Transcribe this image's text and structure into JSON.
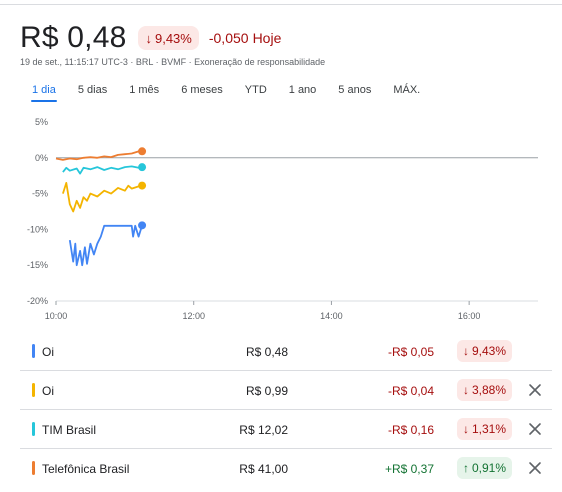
{
  "quote": {
    "price": "R$ 0,48",
    "pct": "9,43%",
    "pct_arrow": "↓",
    "change": "-0,050",
    "today": "Hoje",
    "meta": "19 de set., 11:15:17 UTC-3 · BRL · BVMF · Exoneração de responsabilidade"
  },
  "tabs": [
    "1 dia",
    "5 dias",
    "1 mês",
    "6 meses",
    "YTD",
    "1 ano",
    "5 anos",
    "MÁX."
  ],
  "active_tab": "1 dia",
  "chart_data": {
    "type": "line",
    "y_ticks": [
      "5%",
      "0%",
      "-5%",
      "-10%",
      "-15%",
      "-20%"
    ],
    "ylim": [
      -20,
      5
    ],
    "x_ticks": [
      "10:00",
      "12:00",
      "14:00",
      "16:00"
    ],
    "x_tick_hours": [
      10,
      12,
      14,
      16
    ],
    "xlim": [
      10,
      17
    ],
    "baseline": 0,
    "series": [
      {
        "color": "#ed7d31",
        "points": [
          [
            10.0,
            -0.1
          ],
          [
            10.1,
            -0.3
          ],
          [
            10.2,
            -0.1
          ],
          [
            10.3,
            -0.2
          ],
          [
            10.4,
            0.0
          ],
          [
            10.5,
            0.1
          ],
          [
            10.6,
            0.0
          ],
          [
            10.7,
            0.2
          ],
          [
            10.8,
            0.1
          ],
          [
            10.9,
            0.4
          ],
          [
            11.0,
            0.5
          ],
          [
            11.1,
            0.6
          ],
          [
            11.2,
            0.9
          ],
          [
            11.25,
            0.91
          ]
        ]
      },
      {
        "color": "#26c6da",
        "points": [
          [
            10.1,
            -2.0
          ],
          [
            10.15,
            -1.4
          ],
          [
            10.2,
            -1.8
          ],
          [
            10.3,
            -1.5
          ],
          [
            10.35,
            -2.2
          ],
          [
            10.4,
            -1.4
          ],
          [
            10.5,
            -1.6
          ],
          [
            10.6,
            -1.3
          ],
          [
            10.7,
            -1.7
          ],
          [
            10.8,
            -1.4
          ],
          [
            10.9,
            -1.6
          ],
          [
            11.0,
            -1.3
          ],
          [
            11.1,
            -1.2
          ],
          [
            11.2,
            -1.4
          ],
          [
            11.25,
            -1.31
          ]
        ]
      },
      {
        "color": "#f4b400",
        "points": [
          [
            10.1,
            -5.0
          ],
          [
            10.15,
            -3.5
          ],
          [
            10.2,
            -6.5
          ],
          [
            10.25,
            -7.5
          ],
          [
            10.3,
            -6.0
          ],
          [
            10.35,
            -7.0
          ],
          [
            10.4,
            -5.5
          ],
          [
            10.45,
            -6.0
          ],
          [
            10.5,
            -5.0
          ],
          [
            10.6,
            -5.4
          ],
          [
            10.7,
            -4.6
          ],
          [
            10.8,
            -5.0
          ],
          [
            10.9,
            -4.2
          ],
          [
            11.0,
            -4.6
          ],
          [
            11.05,
            -3.9
          ],
          [
            11.1,
            -4.3
          ],
          [
            11.2,
            -4.0
          ],
          [
            11.25,
            -3.88
          ]
        ]
      },
      {
        "color": "#4285f4",
        "points": [
          [
            10.2,
            -11.5
          ],
          [
            10.25,
            -14.5
          ],
          [
            10.28,
            -12.0
          ],
          [
            10.3,
            -15.0
          ],
          [
            10.35,
            -13.0
          ],
          [
            10.38,
            -15.0
          ],
          [
            10.42,
            -12.5
          ],
          [
            10.45,
            -14.8
          ],
          [
            10.5,
            -12.0
          ],
          [
            10.55,
            -13.5
          ],
          [
            10.6,
            -12.0
          ],
          [
            10.65,
            -11.0
          ],
          [
            10.7,
            -9.5
          ],
          [
            10.8,
            -9.5
          ],
          [
            11.0,
            -9.5
          ],
          [
            11.1,
            -9.5
          ],
          [
            11.12,
            -11.0
          ],
          [
            11.15,
            -9.5
          ],
          [
            11.2,
            -11.0
          ],
          [
            11.25,
            -9.43
          ]
        ]
      }
    ]
  },
  "rows": [
    {
      "name": "Oi",
      "color": "#4285f4",
      "price": "R$ 0,48",
      "change": "-R$ 0,05",
      "pct": "9,43%",
      "arrow": "↓",
      "dir": "neg",
      "closable": false
    },
    {
      "name": "Oi",
      "color": "#f4b400",
      "price": "R$ 0,99",
      "change": "-R$ 0,04",
      "pct": "3,88%",
      "arrow": "↓",
      "dir": "neg",
      "closable": true
    },
    {
      "name": "TIM Brasil",
      "color": "#26c6da",
      "price": "R$ 12,02",
      "change": "-R$ 0,16",
      "pct": "1,31%",
      "arrow": "↓",
      "dir": "neg",
      "closable": true
    },
    {
      "name": "Telefônica Brasil",
      "color": "#ed7d31",
      "price": "R$ 41,00",
      "change": "+R$ 0,37",
      "pct": "0,91%",
      "arrow": "↑",
      "dir": "pos",
      "closable": true
    }
  ]
}
